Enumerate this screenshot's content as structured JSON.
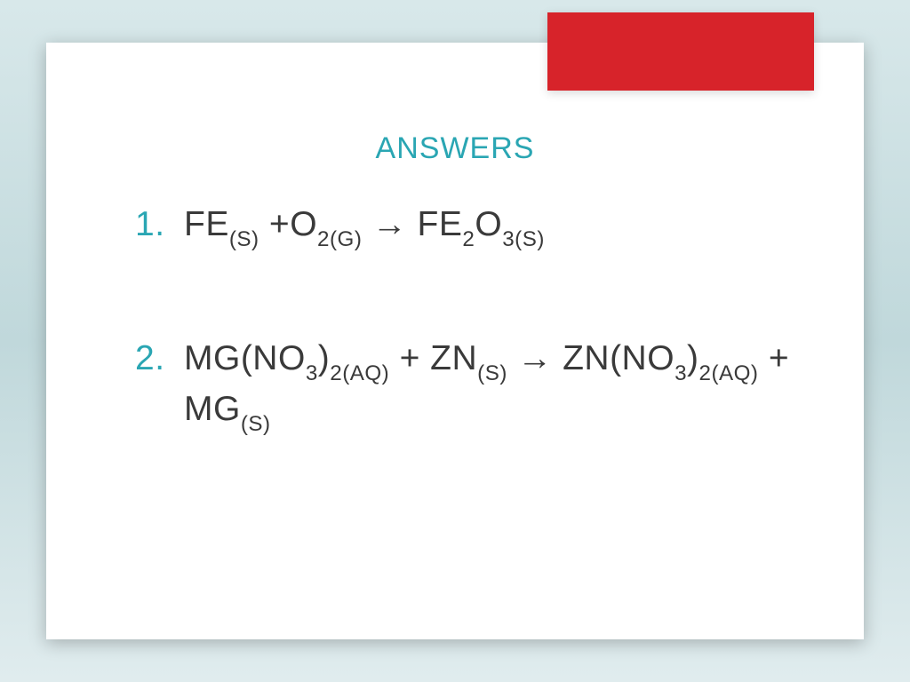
{
  "slide": {
    "title": "ANSWERS",
    "title_color": "#2aa6b3",
    "background_gradient": [
      "#d8e8ea",
      "#c0d8db",
      "#e0ecee"
    ],
    "slide_bg": "#ffffff",
    "accent_tab_color": "#d7232a",
    "text_color": "#3a3a3a",
    "number_color": "#2aa6b3",
    "title_fontsize": 34,
    "body_fontsize": 39,
    "items": [
      {
        "equation_parts": {
          "p1": "FE",
          "p2": "(S)",
          "p3": " +O",
          "p4": "2(G)",
          "p5": " → FE",
          "p6": "2",
          "p7": "O",
          "p8": "3(S)"
        }
      },
      {
        "equation_parts": {
          "p1": "MG(NO",
          "p2": "3",
          "p3": ")",
          "p4": "2(AQ)",
          "p5": " + ZN",
          "p6": "(S)",
          "p7": " → ZN(NO",
          "p8": "3",
          "p9": ")",
          "p10": "2(AQ)",
          "p11": " + MG",
          "p12": "(S)"
        }
      }
    ]
  }
}
